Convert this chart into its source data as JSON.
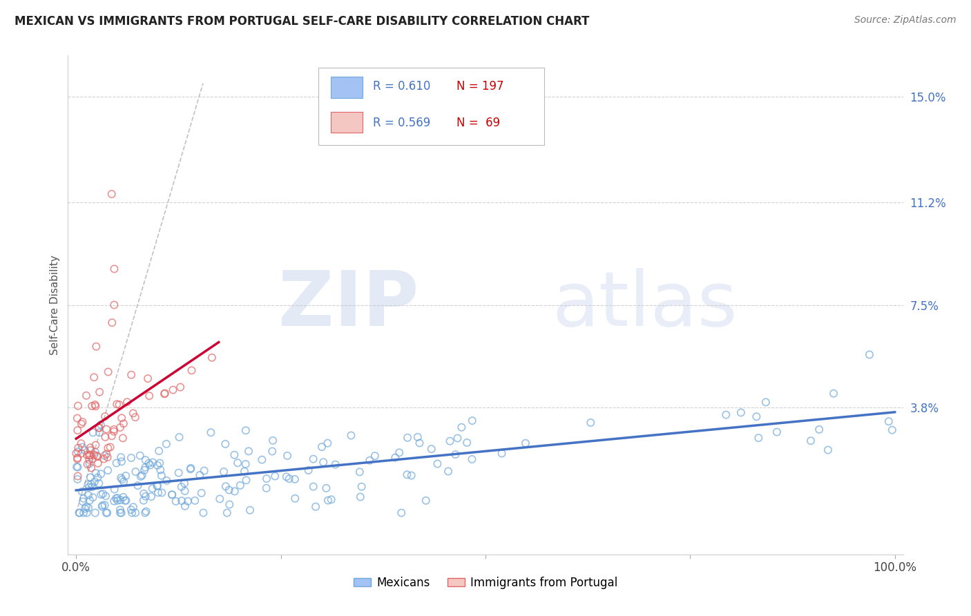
{
  "title": "MEXICAN VS IMMIGRANTS FROM PORTUGAL SELF-CARE DISABILITY CORRELATION CHART",
  "source": "Source: ZipAtlas.com",
  "xlabel": "",
  "ylabel": "Self-Care Disability",
  "xlim": [
    -0.01,
    1.01
  ],
  "ylim": [
    -0.015,
    0.165
  ],
  "ytick_values": [
    0.038,
    0.075,
    0.112,
    0.15
  ],
  "ytick_labels": [
    "3.8%",
    "7.5%",
    "11.2%",
    "15.0%"
  ],
  "group1": {
    "name": "Mexicans",
    "color": "#a4c2f4",
    "edge_color": "#6fa8dc",
    "line_color": "#4472c4",
    "R": 0.61,
    "N": 197
  },
  "group2": {
    "name": "Immigrants from Portugal",
    "color": "#f4c7c3",
    "edge_color": "#e06666",
    "line_color": "#cc0033",
    "R": 0.569,
    "N": 69
  },
  "watermark_zip": "ZIP",
  "watermark_atlas": "atlas",
  "background_color": "#ffffff",
  "grid_color": "#cccccc",
  "title_color": "#222222",
  "diagonal_color": "#bbbbbb"
}
